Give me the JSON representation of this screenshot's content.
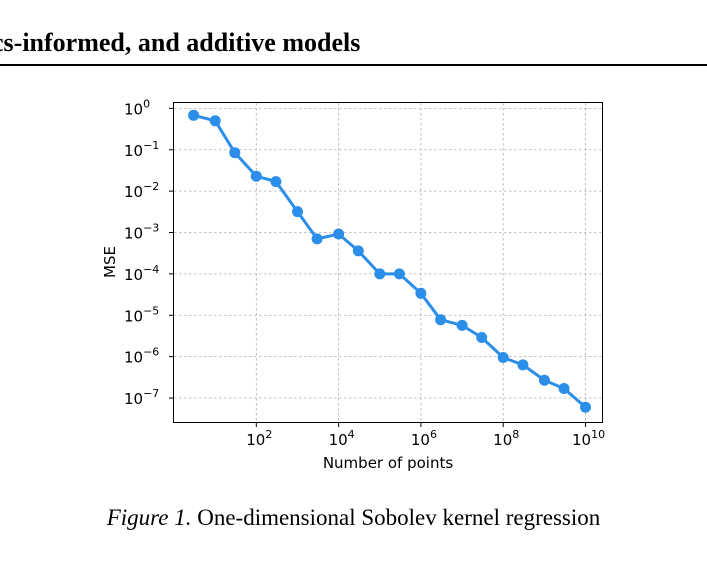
{
  "header": {
    "title": "cs-informed, and additive models"
  },
  "caption": {
    "label": "Figure 1.",
    "text": "One-dimensional Sobolev kernel regression"
  },
  "chart_data": {
    "type": "line",
    "xlabel": "Number of points",
    "ylabel": "MSE",
    "x_scale": "log",
    "y_scale": "log",
    "grid": true,
    "line_color": "#2b8ee8",
    "x_ticks": [
      {
        "value": 100,
        "label": "10",
        "exp": "2"
      },
      {
        "value": 10000,
        "label": "10",
        "exp": "4"
      },
      {
        "value": 1000000,
        "label": "10",
        "exp": "6"
      },
      {
        "value": 100000000,
        "label": "10",
        "exp": "8"
      },
      {
        "value": 10000000000,
        "label": "10",
        "exp": "10"
      }
    ],
    "y_ticks": [
      {
        "value": 1,
        "label": "10",
        "exp": "0"
      },
      {
        "value": 0.1,
        "label": "10",
        "exp": "−1"
      },
      {
        "value": 0.01,
        "label": "10",
        "exp": "−2"
      },
      {
        "value": 0.001,
        "label": "10",
        "exp": "−3"
      },
      {
        "value": 0.0001,
        "label": "10",
        "exp": "−4"
      },
      {
        "value": 1e-05,
        "label": "10",
        "exp": "−5"
      },
      {
        "value": 1e-06,
        "label": "10",
        "exp": "−6"
      },
      {
        "value": 1e-07,
        "label": "10",
        "exp": "−7"
      }
    ],
    "x": [
      3,
      10,
      30,
      100,
      300,
      1000,
      3000,
      10000,
      30000,
      100000,
      300000,
      1000000,
      3000000,
      10000000,
      30000000,
      100000000,
      300000000,
      1000000000,
      3000000000,
      10000000000
    ],
    "y": [
      0.68,
      0.5,
      0.085,
      0.023,
      0.017,
      0.0032,
      0.0007,
      0.00092,
      0.00036,
      0.0001,
      0.0001,
      3.4e-05,
      7.8e-06,
      5.7e-06,
      2.9e-06,
      9.5e-07,
      6.3e-07,
      2.7e-07,
      1.7e-07,
      6e-08
    ]
  }
}
